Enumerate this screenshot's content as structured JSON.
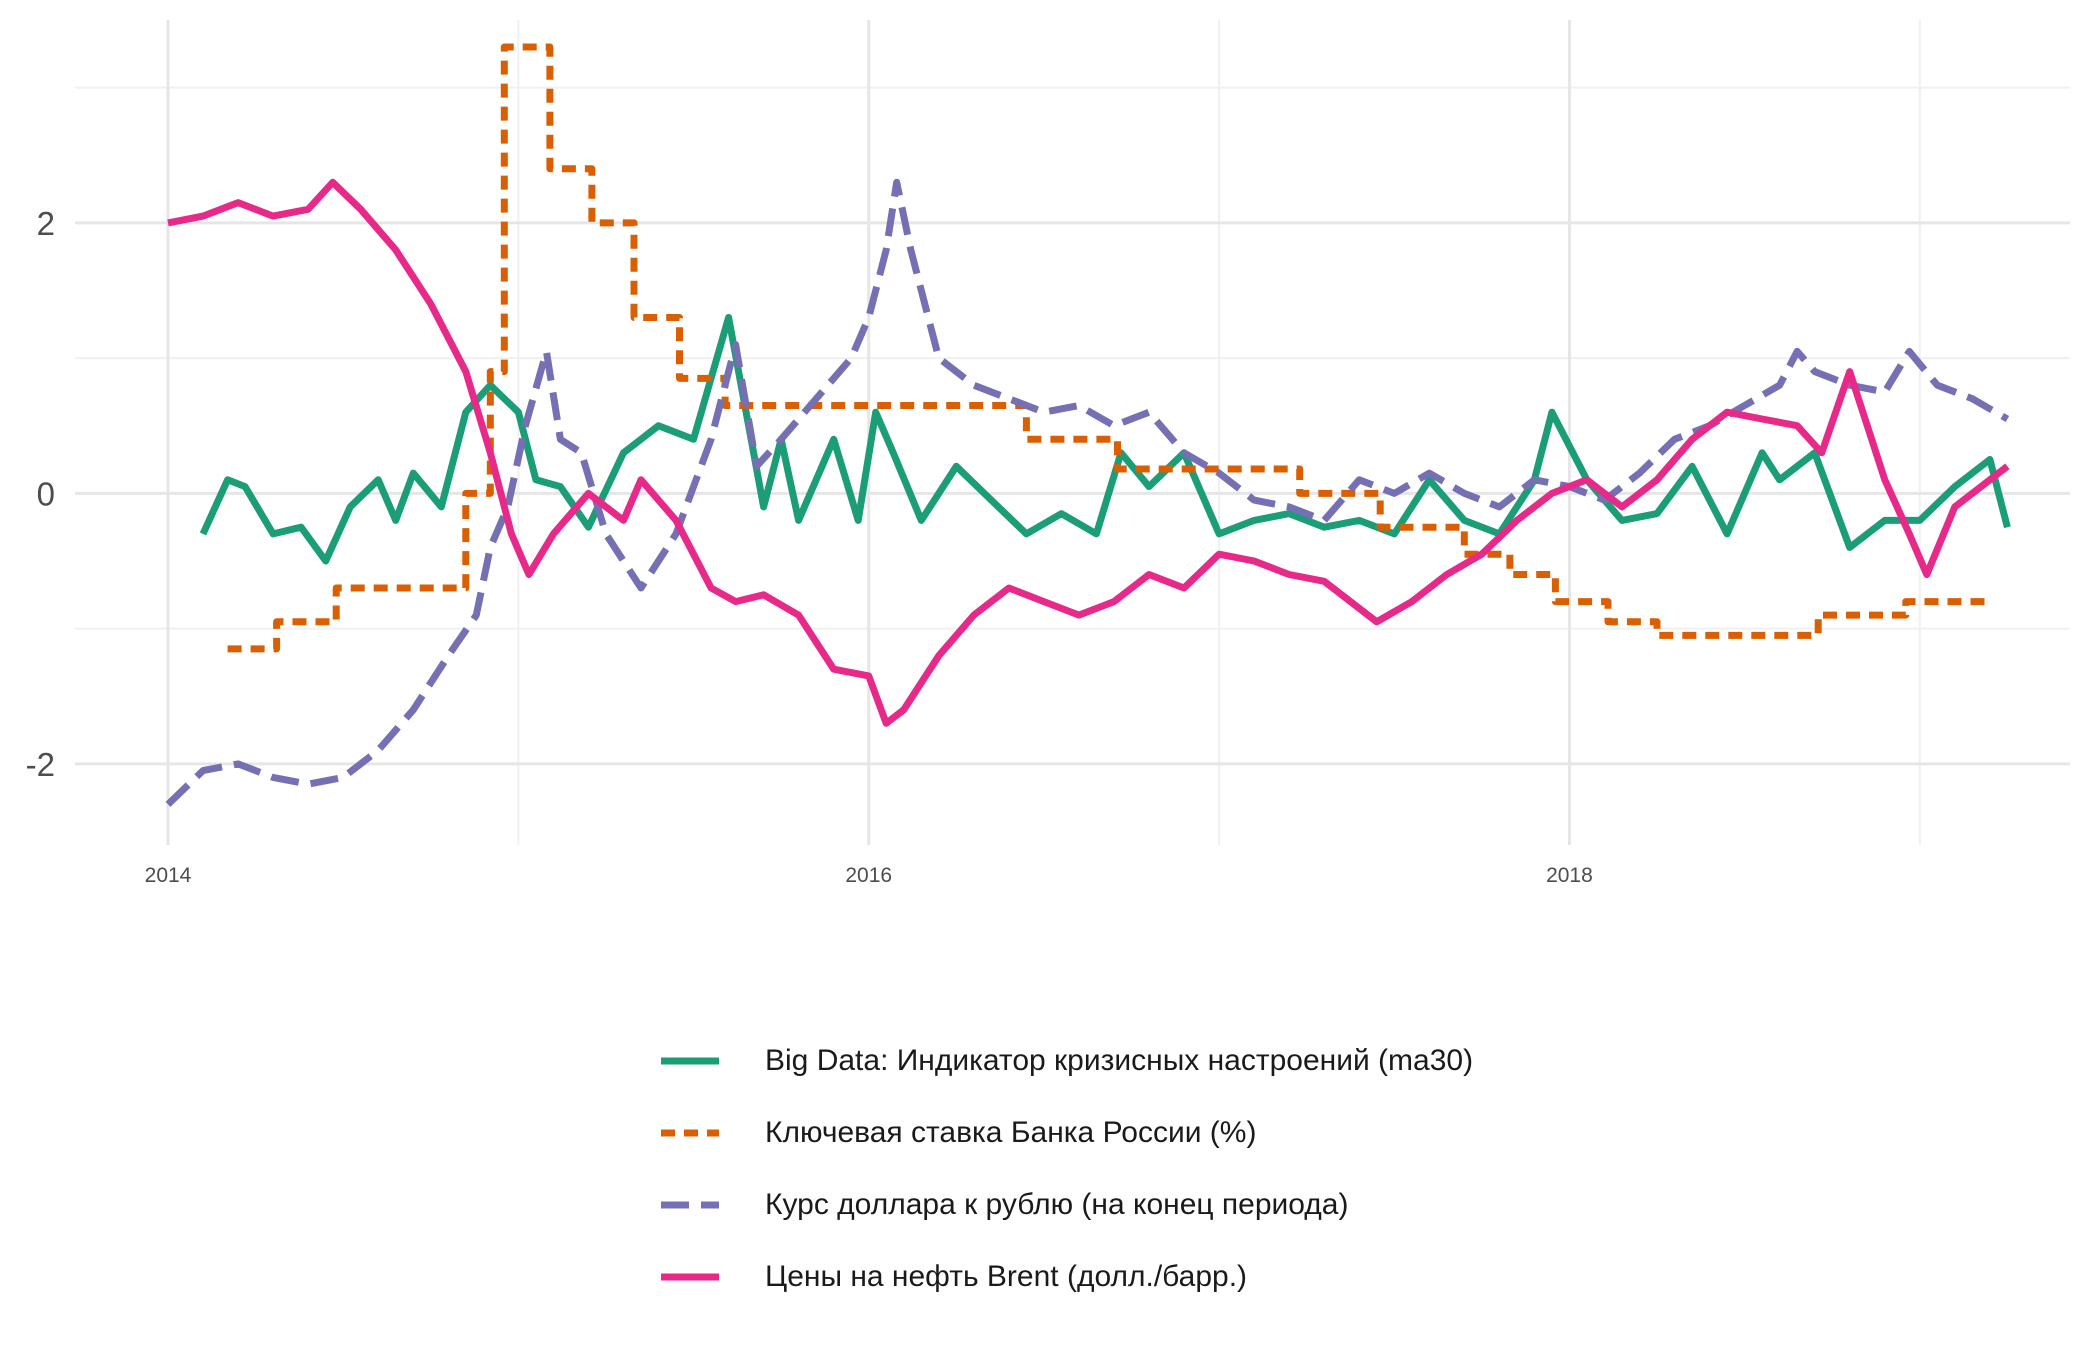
{
  "chart_data": {
    "type": "line",
    "title": "",
    "xlabel": "",
    "ylabel": "",
    "xlim": [
      2014.0,
      2019.6
    ],
    "ylim": [
      -2.6,
      3.5
    ],
    "x_ticks": [
      2014,
      2016,
      2018
    ],
    "x_tick_labels": [
      "2014",
      "2016",
      "2018"
    ],
    "y_ticks": [
      -2,
      0,
      2
    ],
    "y_tick_labels": [
      "-2",
      "0",
      "2"
    ],
    "grid": true,
    "legend_position": "bottom",
    "series": [
      {
        "name": "Big Data: Индикатор кризисных настроений (ma30)",
        "color": "#1b9e77",
        "dash": "solid",
        "x": [
          2014.1,
          2014.17,
          2014.22,
          2014.3,
          2014.38,
          2014.45,
          2014.52,
          2014.6,
          2014.65,
          2014.7,
          2014.78,
          2014.85,
          2014.92,
          2015.0,
          2015.05,
          2015.12,
          2015.2,
          2015.3,
          2015.4,
          2015.5,
          2015.6,
          2015.7,
          2015.75,
          2015.8,
          2015.9,
          2015.97,
          2016.02,
          2016.07,
          2016.15,
          2016.25,
          2016.35,
          2016.45,
          2016.55,
          2016.65,
          2016.72,
          2016.8,
          2016.9,
          2017.0,
          2017.1,
          2017.2,
          2017.3,
          2017.4,
          2017.5,
          2017.6,
          2017.7,
          2017.8,
          2017.9,
          2017.95,
          2018.05,
          2018.15,
          2018.25,
          2018.35,
          2018.45,
          2018.55,
          2018.6,
          2018.7,
          2018.8,
          2018.9,
          2019.0,
          2019.1,
          2019.2,
          2019.25
        ],
        "y": [
          -0.3,
          0.1,
          0.05,
          -0.3,
          -0.25,
          -0.5,
          -0.1,
          0.1,
          -0.2,
          0.15,
          -0.1,
          0.6,
          0.8,
          0.6,
          0.1,
          0.05,
          -0.25,
          0.3,
          0.5,
          0.4,
          1.3,
          -0.1,
          0.4,
          -0.2,
          0.4,
          -0.2,
          0.6,
          0.3,
          -0.2,
          0.2,
          -0.05,
          -0.3,
          -0.15,
          -0.3,
          0.3,
          0.05,
          0.3,
          -0.3,
          -0.2,
          -0.15,
          -0.25,
          -0.2,
          -0.3,
          0.1,
          -0.2,
          -0.3,
          0.1,
          0.6,
          0.1,
          -0.2,
          -0.15,
          0.2,
          -0.3,
          0.3,
          0.1,
          0.3,
          -0.4,
          -0.2,
          -0.2,
          0.05,
          0.25,
          -0.25
        ]
      },
      {
        "name": "Ключевая ставка Банка России (%)",
        "color": "#d95f02",
        "dash": "dashed",
        "x": [
          2014.17,
          2014.31,
          2014.31,
          2014.48,
          2014.48,
          2014.85,
          2014.85,
          2014.92,
          2014.92,
          2014.96,
          2014.96,
          2015.09,
          2015.09,
          2015.21,
          2015.21,
          2015.33,
          2015.33,
          2015.46,
          2015.46,
          2015.59,
          2015.59,
          2016.45,
          2016.45,
          2016.71,
          2016.71,
          2017.23,
          2017.23,
          2017.46,
          2017.46,
          2017.7,
          2017.7,
          2017.83,
          2017.83,
          2017.96,
          2017.96,
          2018.11,
          2018.11,
          2018.25,
          2018.25,
          2018.71,
          2018.71,
          2018.96,
          2018.96,
          2019.21
        ],
        "y": [
          -1.15,
          -1.15,
          -0.95,
          -0.95,
          -0.7,
          -0.7,
          0.0,
          0.0,
          0.9,
          0.9,
          3.3,
          3.3,
          2.4,
          2.4,
          2.0,
          2.0,
          1.3,
          1.3,
          0.85,
          0.85,
          0.65,
          0.65,
          0.4,
          0.4,
          0.18,
          0.18,
          0.0,
          0.0,
          -0.25,
          -0.25,
          -0.45,
          -0.45,
          -0.6,
          -0.6,
          -0.8,
          -0.8,
          -0.95,
          -0.95,
          -1.05,
          -1.05,
          -0.9,
          -0.9,
          -0.8,
          -0.8
        ]
      },
      {
        "name": "Курс доллара к рублю (на конец периода)",
        "color": "#7570b3",
        "dash": "longdash",
        "x": [
          2014.0,
          2014.1,
          2014.2,
          2014.3,
          2014.4,
          2014.5,
          2014.6,
          2014.7,
          2014.8,
          2014.88,
          2014.92,
          2014.97,
          2015.02,
          2015.08,
          2015.12,
          2015.18,
          2015.25,
          2015.35,
          2015.45,
          2015.55,
          2015.62,
          2015.68,
          2015.75,
          2015.85,
          2015.95,
          2016.0,
          2016.05,
          2016.08,
          2016.12,
          2016.2,
          2016.3,
          2016.4,
          2016.5,
          2016.6,
          2016.7,
          2016.8,
          2016.9,
          2017.0,
          2017.1,
          2017.2,
          2017.3,
          2017.4,
          2017.5,
          2017.6,
          2017.7,
          2017.8,
          2017.9,
          2018.0,
          2018.1,
          2018.2,
          2018.3,
          2018.4,
          2018.5,
          2018.6,
          2018.65,
          2018.7,
          2018.8,
          2018.9,
          2018.97,
          2019.05,
          2019.15,
          2019.25
        ],
        "y": [
          -2.3,
          -2.05,
          -2.0,
          -2.1,
          -2.15,
          -2.1,
          -1.9,
          -1.6,
          -1.2,
          -0.9,
          -0.4,
          -0.1,
          0.5,
          1.05,
          0.4,
          0.3,
          -0.3,
          -0.7,
          -0.3,
          0.4,
          1.1,
          0.2,
          0.4,
          0.7,
          1.0,
          1.3,
          1.8,
          2.3,
          1.8,
          1.0,
          0.8,
          0.7,
          0.6,
          0.65,
          0.5,
          0.6,
          0.3,
          0.15,
          -0.05,
          -0.1,
          -0.2,
          0.1,
          0.0,
          0.15,
          0.0,
          -0.1,
          0.1,
          0.05,
          -0.05,
          0.15,
          0.4,
          0.5,
          0.65,
          0.8,
          1.05,
          0.9,
          0.8,
          0.75,
          1.05,
          0.8,
          0.7,
          0.55
        ]
      },
      {
        "name": "Цены на нефть Brent (долл./барр.)",
        "color": "#e7298a",
        "dash": "solid",
        "x": [
          2014.0,
          2014.1,
          2014.2,
          2014.3,
          2014.4,
          2014.47,
          2014.55,
          2014.65,
          2014.75,
          2014.85,
          2014.92,
          2014.98,
          2015.03,
          2015.1,
          2015.2,
          2015.3,
          2015.35,
          2015.45,
          2015.55,
          2015.62,
          2015.7,
          2015.8,
          2015.9,
          2016.0,
          2016.05,
          2016.1,
          2016.2,
          2016.3,
          2016.4,
          2016.5,
          2016.6,
          2016.7,
          2016.8,
          2016.9,
          2017.0,
          2017.1,
          2017.2,
          2017.3,
          2017.4,
          2017.45,
          2017.55,
          2017.65,
          2017.75,
          2017.85,
          2017.95,
          2018.05,
          2018.15,
          2018.25,
          2018.35,
          2018.45,
          2018.55,
          2018.65,
          2018.72,
          2018.8,
          2018.9,
          2018.97,
          2019.02,
          2019.1,
          2019.2,
          2019.25
        ],
        "y": [
          2.0,
          2.05,
          2.15,
          2.05,
          2.1,
          2.3,
          2.1,
          1.8,
          1.4,
          0.9,
          0.3,
          -0.3,
          -0.6,
          -0.3,
          0.0,
          -0.2,
          0.1,
          -0.2,
          -0.7,
          -0.8,
          -0.75,
          -0.9,
          -1.3,
          -1.35,
          -1.7,
          -1.6,
          -1.2,
          -0.9,
          -0.7,
          -0.8,
          -0.9,
          -0.8,
          -0.6,
          -0.7,
          -0.45,
          -0.5,
          -0.6,
          -0.65,
          -0.85,
          -0.95,
          -0.8,
          -0.6,
          -0.45,
          -0.2,
          0.0,
          0.1,
          -0.1,
          0.1,
          0.4,
          0.6,
          0.55,
          0.5,
          0.3,
          0.9,
          0.1,
          -0.3,
          -0.6,
          -0.1,
          0.1,
          0.2
        ]
      }
    ]
  }
}
